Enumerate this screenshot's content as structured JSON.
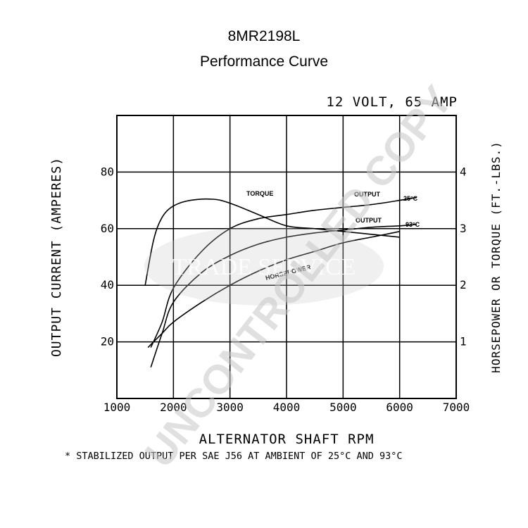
{
  "chart_data": {
    "type": "line",
    "title": "8MR2198L",
    "subtitle": "Performance Curve",
    "rating": "12 VOLT, 65 AMP",
    "xlabel": "ALTERNATOR SHAFT RPM",
    "ylabel_left": "OUTPUT CURRENT (AMPERES)",
    "ylabel_right": "HORSEPOWER OR TORQUE (FT.-LBS.)",
    "xlim": [
      1000,
      7000
    ],
    "ylim_left": [
      0,
      100
    ],
    "ylim_right": [
      0,
      5
    ],
    "x_ticks": [
      1000,
      2000,
      3000,
      4000,
      5000,
      6000,
      7000
    ],
    "y_ticks_left": [
      20,
      40,
      60,
      80
    ],
    "y_ticks_right": [
      1,
      2,
      3,
      4
    ],
    "grid": true,
    "series": [
      {
        "name": "OUTPUT 25°C",
        "axis": "left",
        "x": [
          1600,
          1800,
          2000,
          2500,
          3000,
          3500,
          4000,
          4500,
          5000,
          5500,
          6000,
          6300
        ],
        "y": [
          18,
          27,
          39,
          52,
          60,
          63.5,
          65,
          66.5,
          67.5,
          68.5,
          70,
          71
        ]
      },
      {
        "name": "OUTPUT 93°C",
        "axis": "left",
        "x": [
          1600,
          1800,
          2000,
          2500,
          3000,
          3500,
          4000,
          4500,
          5000,
          5500,
          6000,
          6300
        ],
        "y": [
          11,
          23,
          34,
          44.5,
          50.5,
          54.5,
          57,
          58.5,
          59.5,
          60.5,
          61,
          61.5
        ]
      },
      {
        "name": "TORQUE",
        "axis": "right",
        "x": [
          1500,
          1650,
          1800,
          2000,
          2300,
          2700,
          3000,
          3500,
          4000,
          4500,
          5000,
          5500,
          6000
        ],
        "y": [
          2.0,
          2.8,
          3.2,
          3.4,
          3.5,
          3.52,
          3.45,
          3.25,
          3.05,
          3.0,
          2.95,
          2.9,
          2.85
        ]
      },
      {
        "name": "HORSEPOWER",
        "axis": "right",
        "x": [
          1550,
          1800,
          2000,
          2500,
          3000,
          3500,
          4000,
          4500,
          5000,
          5500,
          6000
        ],
        "y": [
          0.9,
          1.15,
          1.35,
          1.7,
          2.0,
          2.25,
          2.45,
          2.6,
          2.75,
          2.85,
          2.95
        ]
      }
    ],
    "annotations": {
      "torque": "TORQUE",
      "horsepower": "HORSEPOWER",
      "output_25": "OUTPUT",
      "output_93": "OUTPUT",
      "temp_25": "25°C",
      "temp_93": "93°C"
    },
    "footnote": "* STABILIZED OUTPUT PER SAE J56 AT AMBIENT OF 25°C AND 93°C"
  },
  "watermark": {
    "stamp": "UNCONTROLLED COPY",
    "logo": "TRADE SERVICE"
  },
  "colors": {
    "line": "#000000",
    "watermark": "#c8c8c8",
    "background": "#ffffff"
  }
}
